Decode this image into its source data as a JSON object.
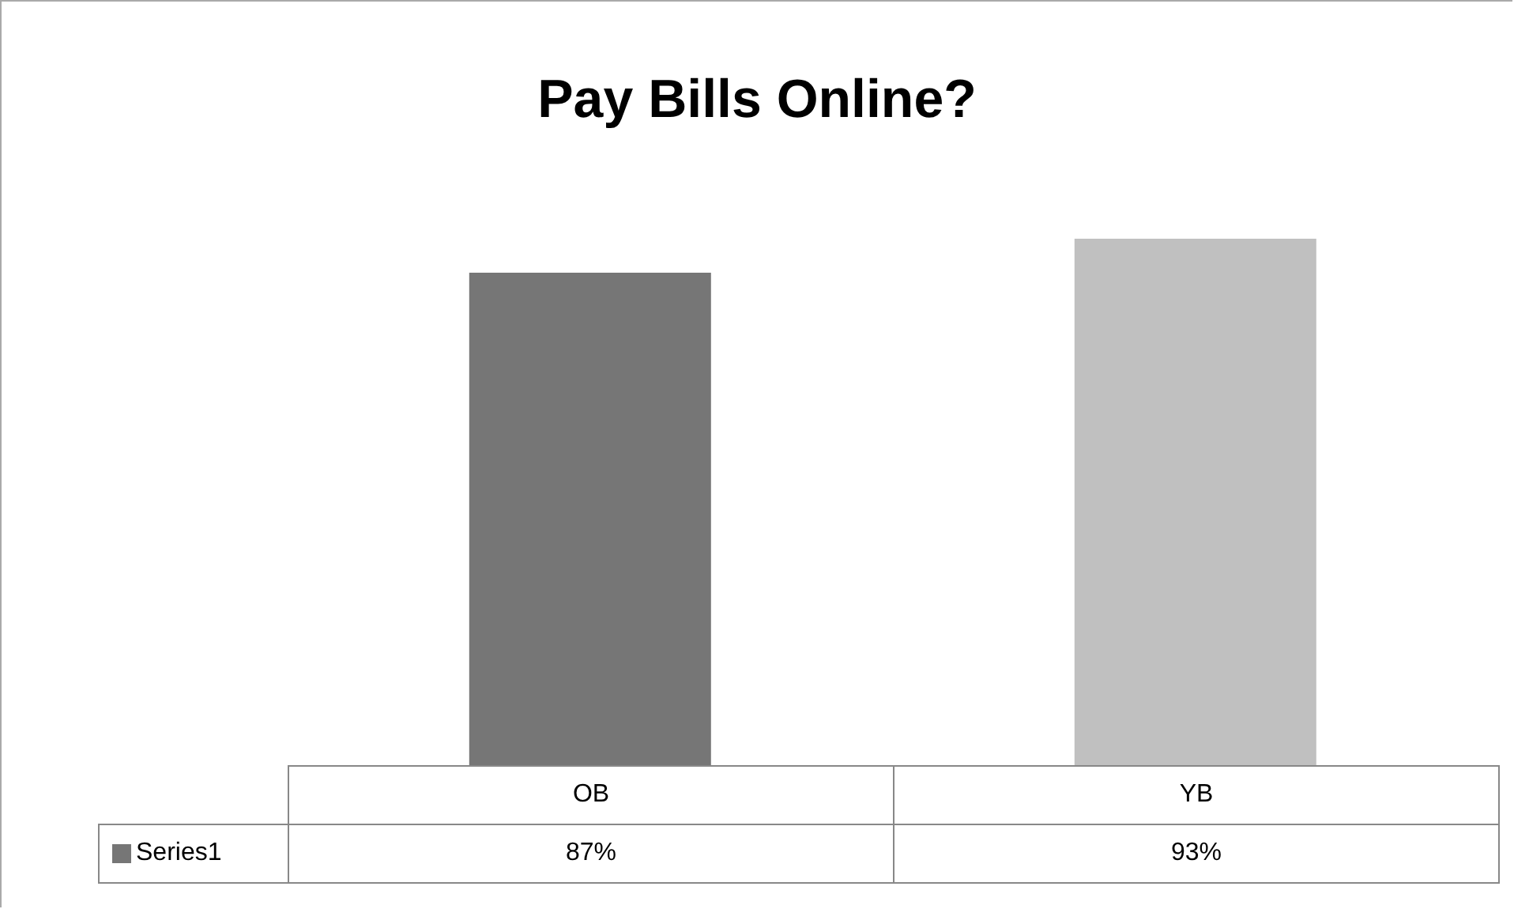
{
  "chart_data": {
    "type": "bar",
    "title": "Pay Bills Online?",
    "categories": [
      "OB",
      "YB"
    ],
    "series": [
      {
        "name": "Series1",
        "color": "#767676",
        "colors": [
          "#767676",
          "#c0c0c0"
        ],
        "values": [
          87,
          93
        ],
        "value_labels": [
          "87%",
          "93%"
        ]
      }
    ],
    "grid": false,
    "legend": "bottom"
  }
}
